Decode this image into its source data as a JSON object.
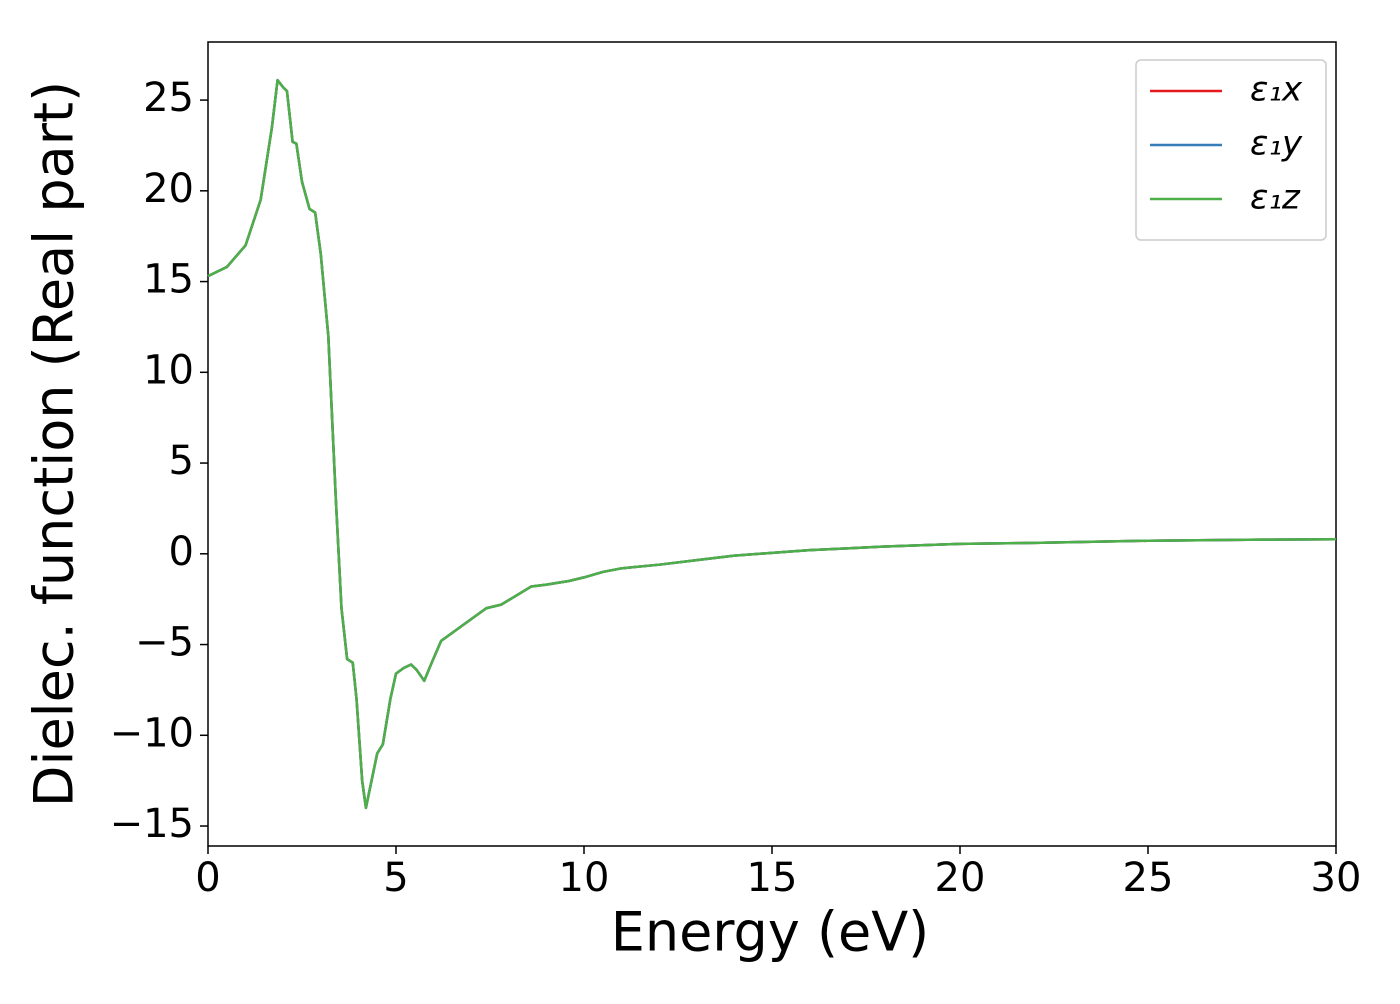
{
  "chart_data": {
    "type": "line",
    "xlabel": "Energy (eV)",
    "ylabel": "Dielec. function (Real part)",
    "x": [
      0,
      0.5,
      1.0,
      1.4,
      1.7,
      1.85,
      2.0,
      2.1,
      2.25,
      2.35,
      2.5,
      2.7,
      2.85,
      3.0,
      3.2,
      3.4,
      3.55,
      3.7,
      3.85,
      3.95,
      4.1,
      4.2,
      4.35,
      4.5,
      4.65,
      4.85,
      5.0,
      5.2,
      5.4,
      5.55,
      5.75,
      5.95,
      6.2,
      6.6,
      7.0,
      7.4,
      7.8,
      8.2,
      8.6,
      9.0,
      9.6,
      10.0,
      10.5,
      11.0,
      12,
      13,
      14,
      15,
      16,
      17,
      18,
      20,
      22,
      25,
      28,
      30
    ],
    "series": [
      {
        "name": "ε₁x",
        "color": "#e41a1c",
        "values": [
          15.3,
          15.8,
          17.0,
          19.5,
          23.5,
          26.1,
          25.7,
          25.5,
          22.7,
          22.6,
          20.5,
          19.0,
          18.8,
          16.5,
          12.0,
          3.0,
          -3.0,
          -5.8,
          -6.0,
          -8.0,
          -12.5,
          -14.0,
          -12.5,
          -11.0,
          -10.5,
          -8.0,
          -6.6,
          -6.3,
          -6.1,
          -6.4,
          -7.0,
          -6.0,
          -4.8,
          -4.2,
          -3.6,
          -3.0,
          -2.8,
          -2.3,
          -1.8,
          -1.7,
          -1.5,
          -1.3,
          -1.0,
          -0.8,
          -0.6,
          -0.35,
          -0.1,
          0.05,
          0.2,
          0.3,
          0.4,
          0.55,
          0.6,
          0.72,
          0.78,
          0.8
        ]
      },
      {
        "name": "ε₁y",
        "color": "#377eb8",
        "values": [
          15.3,
          15.8,
          17.0,
          19.5,
          23.5,
          26.1,
          25.7,
          25.5,
          22.7,
          22.6,
          20.5,
          19.0,
          18.8,
          16.5,
          12.0,
          3.0,
          -3.0,
          -5.8,
          -6.0,
          -8.0,
          -12.5,
          -14.0,
          -12.5,
          -11.0,
          -10.5,
          -8.0,
          -6.6,
          -6.3,
          -6.1,
          -6.4,
          -7.0,
          -6.0,
          -4.8,
          -4.2,
          -3.6,
          -3.0,
          -2.8,
          -2.3,
          -1.8,
          -1.7,
          -1.5,
          -1.3,
          -1.0,
          -0.8,
          -0.6,
          -0.35,
          -0.1,
          0.05,
          0.2,
          0.3,
          0.4,
          0.55,
          0.6,
          0.72,
          0.78,
          0.8
        ]
      },
      {
        "name": "ε₁z",
        "color": "#4daf4a",
        "values": [
          15.3,
          15.8,
          17.0,
          19.5,
          23.5,
          26.1,
          25.7,
          25.5,
          22.7,
          22.6,
          20.5,
          19.0,
          18.8,
          16.5,
          12.0,
          3.0,
          -3.0,
          -5.8,
          -6.0,
          -8.0,
          -12.5,
          -14.0,
          -12.5,
          -11.0,
          -10.5,
          -8.0,
          -6.6,
          -6.3,
          -6.1,
          -6.4,
          -7.0,
          -6.0,
          -4.8,
          -4.2,
          -3.6,
          -3.0,
          -2.8,
          -2.3,
          -1.8,
          -1.7,
          -1.5,
          -1.3,
          -1.0,
          -0.8,
          -0.6,
          -0.35,
          -0.1,
          0.05,
          0.2,
          0.3,
          0.4,
          0.55,
          0.6,
          0.72,
          0.78,
          0.8
        ]
      }
    ],
    "xlim": [
      0,
      30
    ],
    "xticks": [
      0,
      5,
      10,
      15,
      20,
      25,
      30
    ],
    "ylim": [
      -16.1,
      28.2
    ],
    "yticks": [
      {
        "value": -15,
        "label": "−15"
      },
      {
        "value": -10,
        "label": "−10"
      },
      {
        "value": -5,
        "label": "−5"
      },
      0,
      5,
      10,
      15,
      20,
      25
    ],
    "legend": "upper right",
    "grid": false
  }
}
